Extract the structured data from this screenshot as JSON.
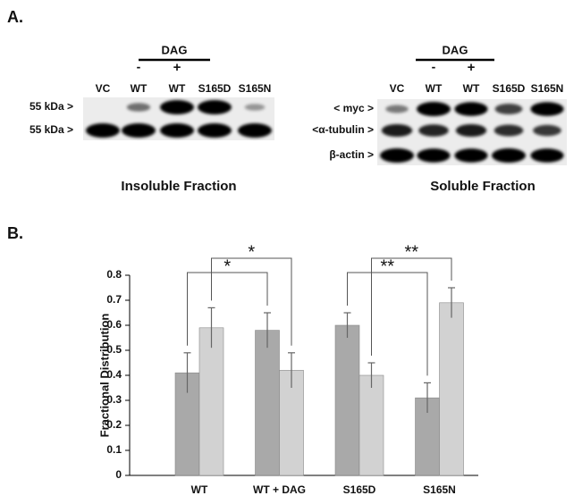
{
  "panel_a": {
    "label": "A.",
    "insoluble": {
      "treatment": "DAG",
      "treatment_marks": [
        "-",
        "+"
      ],
      "lanes": [
        "VC",
        "WT",
        "WT",
        "S165D",
        "S165N"
      ],
      "rows": [
        "55 kDa >",
        "55 kDa >"
      ],
      "caption": "Insoluble Fraction"
    },
    "soluble": {
      "treatment": "DAG",
      "treatment_marks": [
        "-",
        "+"
      ],
      "lanes": [
        "VC",
        "WT",
        "WT",
        "S165D",
        "S165N"
      ],
      "rows": [
        "< myc >",
        "<α-tubulin >",
        "β-actin >"
      ],
      "caption": "Soluble Fraction"
    }
  },
  "panel_b": {
    "label": "B.",
    "chart_data": {
      "type": "bar",
      "y_label": "Fractional Distribution",
      "categories": [
        "WT",
        "WT + DAG",
        "S165D",
        "S165N"
      ],
      "series": [
        {
          "color": "#a9a9a9",
          "values": [
            0.41,
            0.58,
            0.6,
            0.31
          ],
          "errors": [
            0.08,
            0.07,
            0.05,
            0.06
          ]
        },
        {
          "color": "#d2d2d2",
          "values": [
            0.59,
            0.42,
            0.4,
            0.69
          ],
          "errors": [
            0.08,
            0.07,
            0.05,
            0.06
          ]
        }
      ],
      "ylim": [
        0,
        0.8
      ],
      "yticks": [
        0,
        0.1,
        0.2,
        0.3,
        0.4,
        0.5,
        0.6,
        0.7,
        0.8
      ],
      "grid": false,
      "annotations": [
        "*",
        "*",
        "**",
        "**"
      ]
    }
  }
}
